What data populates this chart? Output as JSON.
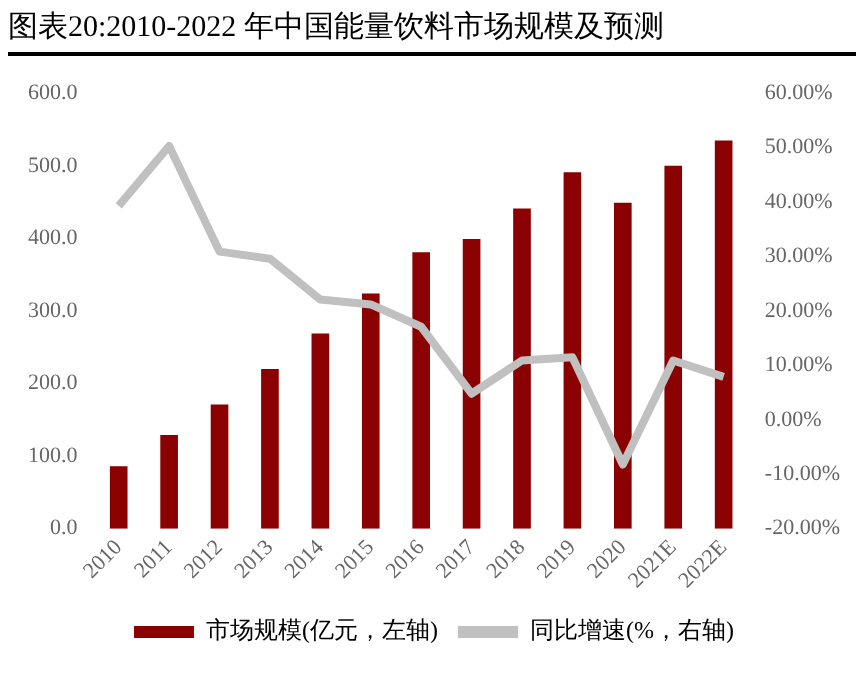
{
  "chart_data": {
    "type": "bar",
    "title": "图表20:2010-2022 年中国能量饮料市场规模及预测",
    "categories": [
      "2010",
      "2011",
      "2012",
      "2013",
      "2014",
      "2015",
      "2016",
      "2017",
      "2018",
      "2019",
      "2020",
      "2021E",
      "2022E"
    ],
    "series": [
      {
        "name": "市场规模(亿元，左轴)",
        "color": "#8b0000",
        "values": [
          86,
          129,
          171,
          220,
          269,
          324,
          381,
          399,
          441,
          491,
          449,
          500,
          535
        ]
      },
      {
        "name": "同比增速(%，右轴)",
        "type": "line",
        "axis": "y2",
        "color": "#c0c0c0",
        "values": [
          39.3,
          50.3,
          30.9,
          29.6,
          22.1,
          21.2,
          17.1,
          4.8,
          10.9,
          11.5,
          -8.2,
          10.9,
          7.9
        ]
      }
    ],
    "ylim": [
      0,
      600
    ],
    "yticks": [
      {
        "value": 0,
        "label": "0.0"
      },
      {
        "value": 100,
        "label": "100.0"
      },
      {
        "value": 200,
        "label": "200.0"
      },
      {
        "value": 300,
        "label": "300.0"
      },
      {
        "value": 400,
        "label": "400.0"
      },
      {
        "value": 500,
        "label": "500.0"
      },
      {
        "value": 600,
        "label": "600.0"
      }
    ],
    "y2lim": [
      -20,
      60
    ],
    "y2ticks": [
      {
        "value": -20,
        "label": "-20.00%"
      },
      {
        "value": -10,
        "label": "-10.00%"
      },
      {
        "value": 0,
        "label": "0.00%"
      },
      {
        "value": 10,
        "label": "10.00%"
      },
      {
        "value": 20,
        "label": "20.00%"
      },
      {
        "value": 30,
        "label": "30.00%"
      },
      {
        "value": 40,
        "label": "40.00%"
      },
      {
        "value": 50,
        "label": "50.00%"
      },
      {
        "value": 60,
        "label": "60.00%"
      }
    ],
    "grid": false,
    "legend": "bottom",
    "marker": "none"
  }
}
